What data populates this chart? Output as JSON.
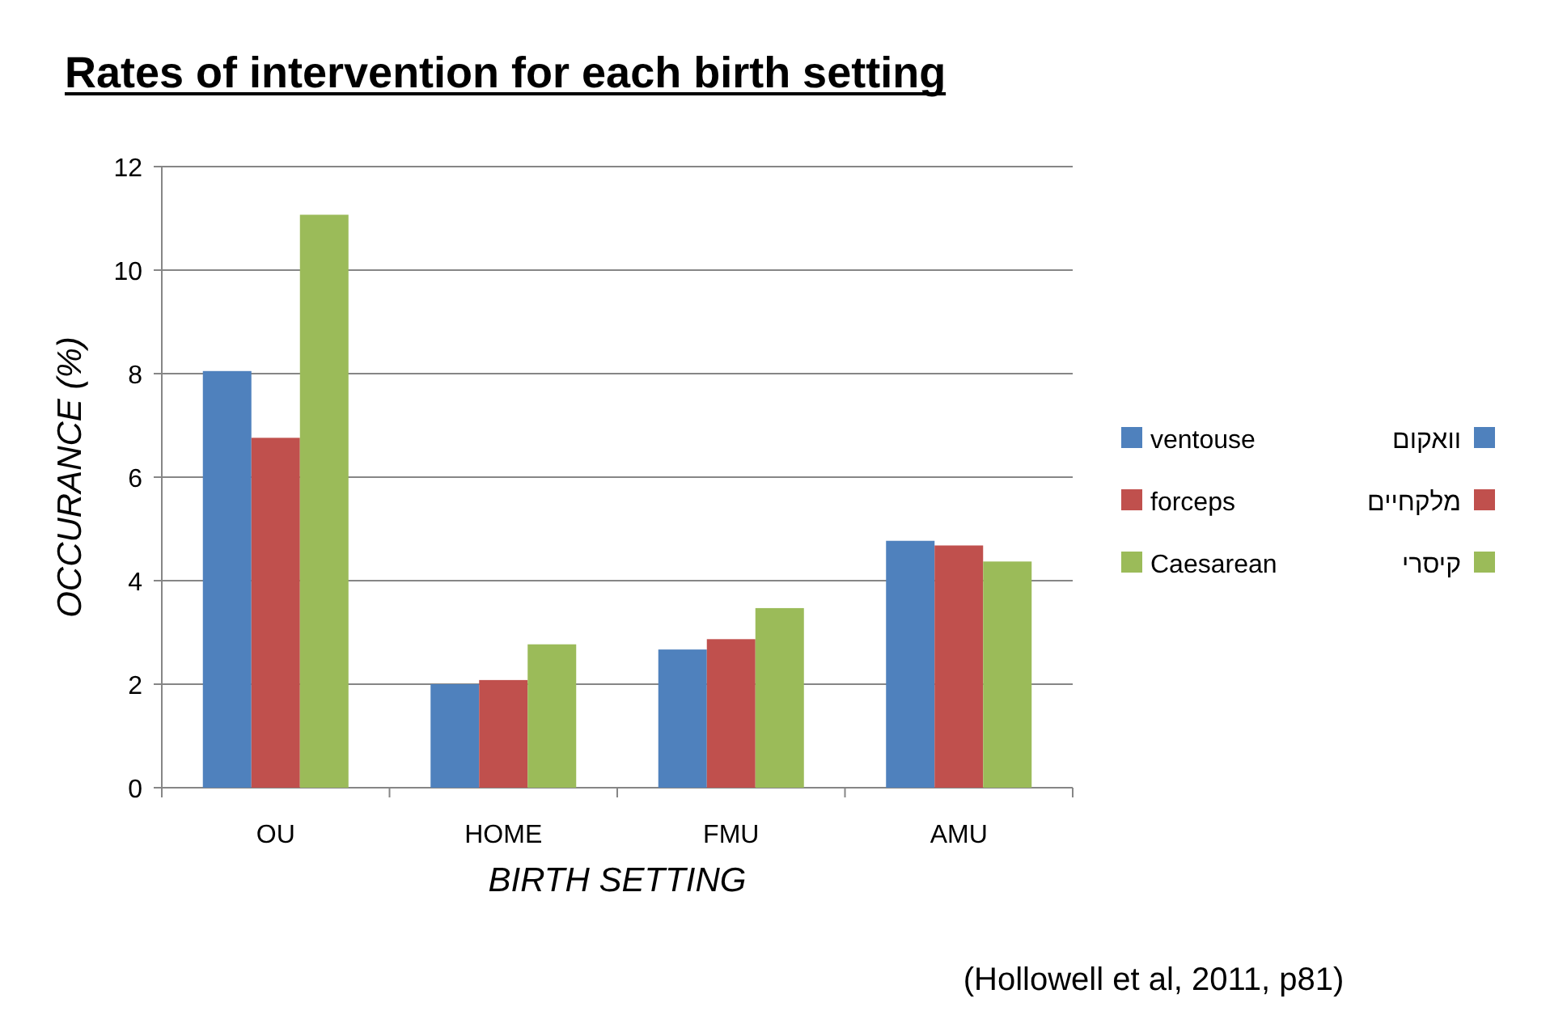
{
  "chart_data": {
    "type": "bar",
    "title": "Rates of intervention for each birth setting",
    "xlabel": "BIRTH SETTING",
    "ylabel": "OCCURANCE (%)",
    "categories": [
      "OU",
      "HOME",
      "FMU",
      "AMU"
    ],
    "series": [
      {
        "name": "ventouse",
        "color": "#4f81bd",
        "values": [
          8.05,
          2.0,
          2.67,
          4.77
        ]
      },
      {
        "name": "forceps",
        "color": "#c0504d",
        "values": [
          6.76,
          2.08,
          2.87,
          4.68
        ]
      },
      {
        "name": "Caesarean",
        "color": "#9bbb59",
        "values": [
          11.07,
          2.77,
          3.47,
          4.37
        ]
      }
    ],
    "ylim": [
      0,
      12
    ],
    "yticks": [
      0,
      2,
      4,
      6,
      8,
      10,
      12
    ],
    "grid": "y",
    "legend": "right",
    "annotations": [
      "(Hollowell et al, 2011, p81)",
      "וואקום",
      "מלקחיים",
      "קיסרי"
    ]
  }
}
